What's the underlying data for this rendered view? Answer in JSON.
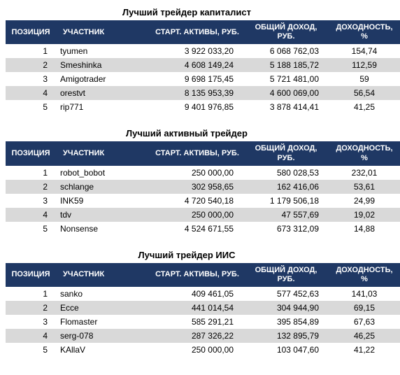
{
  "tables": [
    {
      "title": "Лучший трейдер капиталист",
      "headers": {
        "pos": "ПОЗИЦИЯ",
        "part": "УЧАСТНИК",
        "start": "СТАРТ. АКТИВЫ, РУБ.",
        "income": "ОБЩИЙ ДОХОД, РУБ.",
        "yield": "ДОХОДНОСТЬ, %"
      },
      "rows": [
        {
          "pos": "1",
          "part": "tyumen",
          "start": "3 922 033,20",
          "income": "6 068 762,03",
          "yield": "154,74"
        },
        {
          "pos": "2",
          "part": "Smeshinka",
          "start": "4 608 149,24",
          "income": "5 188 185,72",
          "yield": "112,59"
        },
        {
          "pos": "3",
          "part": "Amigotrader",
          "start": "9 698 175,45",
          "income": "5 721 481,00",
          "yield": "59"
        },
        {
          "pos": "4",
          "part": "orestvt",
          "start": "8 135 953,39",
          "income": "4 600 069,00",
          "yield": "56,54"
        },
        {
          "pos": "5",
          "part": "rip771",
          "start": "9 401 976,85",
          "income": "3 878 414,41",
          "yield": "41,25"
        }
      ]
    },
    {
      "title": "Лучший активный трейдер",
      "headers": {
        "pos": "ПОЗИЦИЯ",
        "part": "УЧАСТНИК",
        "start": "СТАРТ. АКТИВЫ, РУБ.",
        "income": "ОБЩИЙ ДОХОД, РУБ.",
        "yield": "ДОХОДНОСТЬ, %"
      },
      "rows": [
        {
          "pos": "1",
          "part": "robot_bobot",
          "start": "250 000,00",
          "income": "580 028,53",
          "yield": "232,01"
        },
        {
          "pos": "2",
          "part": "schlange",
          "start": "302 958,65",
          "income": "162 416,06",
          "yield": "53,61"
        },
        {
          "pos": "3",
          "part": "INK59",
          "start": "4 720 540,18",
          "income": "1 179 506,18",
          "yield": "24,99"
        },
        {
          "pos": "4",
          "part": "tdv",
          "start": "250 000,00",
          "income": "47 557,69",
          "yield": "19,02"
        },
        {
          "pos": "5",
          "part": "Nonsense",
          "start": "4 524 671,55",
          "income": "673 312,09",
          "yield": "14,88"
        }
      ]
    },
    {
      "title": "Лучший трейдер ИИС",
      "headers": {
        "pos": "ПОЗИЦИЯ",
        "part": "УЧАСТНИК",
        "start": "СТАРТ. АКТИВЫ, РУБ.",
        "income": "ОБЩИЙ ДОХОД, РУБ.",
        "yield": "ДОХОДНОСТЬ, %"
      },
      "rows": [
        {
          "pos": "1",
          "part": "sanko",
          "start": "409 461,05",
          "income": "577 452,63",
          "yield": "141,03"
        },
        {
          "pos": "2",
          "part": "Ecce",
          "start": "441 014,54",
          "income": "304 944,90",
          "yield": "69,15"
        },
        {
          "pos": "3",
          "part": "Flomaster",
          "start": "585 291,21",
          "income": "395 854,89",
          "yield": "67,63"
        },
        {
          "pos": "4",
          "part": "serg-078",
          "start": "287 326,22",
          "income": "132 895,79",
          "yield": "46,25"
        },
        {
          "pos": "5",
          "part": "KAllaV",
          "start": "250 000,00",
          "income": "103 047,60",
          "yield": "41,22"
        }
      ]
    }
  ],
  "styling": {
    "header_bg": "#1f3864",
    "header_fg": "#ffffff",
    "row_even_bg": "#d9d9d9",
    "row_odd_bg": "#ffffff",
    "font_family": "Arial",
    "title_fontsize": 13,
    "cell_fontsize": 12,
    "header_fontsize": 11
  }
}
